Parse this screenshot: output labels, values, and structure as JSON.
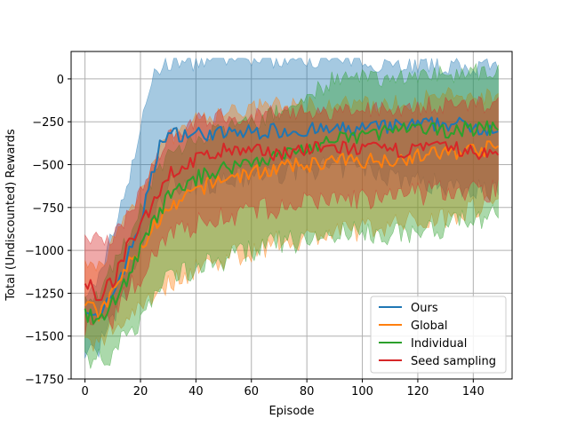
{
  "chart_data": {
    "type": "line",
    "title": "",
    "xlabel": "Episode",
    "ylabel": "Total (Undiscounted) Rewards",
    "xlim": [
      -5,
      154
    ],
    "ylim": [
      -1750,
      160
    ],
    "xticks": [
      0,
      20,
      40,
      60,
      80,
      100,
      120,
      140
    ],
    "yticks": [
      0,
      -250,
      -500,
      -750,
      -1000,
      -1250,
      -1500,
      -1750
    ],
    "xtick_labels": [
      "0",
      "20",
      "40",
      "60",
      "80",
      "100",
      "120",
      "140"
    ],
    "ytick_labels": [
      "0",
      "−250",
      "−500",
      "−750",
      "−1000",
      "−1250",
      "−1500",
      "−1750"
    ],
    "grid": true,
    "legend_position": "lower-right",
    "series": [
      {
        "name": "Ours",
        "color": "#1f77b4",
        "anchors": [
          [
            0,
            -1320
          ],
          [
            5,
            -1420
          ],
          [
            10,
            -1250
          ],
          [
            15,
            -1060
          ],
          [
            20,
            -830
          ],
          [
            25,
            -520
          ],
          [
            28,
            -330
          ],
          [
            35,
            -320
          ],
          [
            50,
            -320
          ],
          [
            70,
            -300
          ],
          [
            90,
            -300
          ],
          [
            110,
            -280
          ],
          [
            130,
            -260
          ],
          [
            149,
            -290
          ]
        ],
        "band_anchors": [
          [
            0,
            -1320,
            -1600
          ],
          [
            5,
            -1150,
            -1560
          ],
          [
            10,
            -900,
            -1420
          ],
          [
            15,
            -620,
            -1250
          ],
          [
            20,
            -300,
            -1000
          ],
          [
            25,
            50,
            -800
          ],
          [
            30,
            90,
            -620
          ],
          [
            50,
            110,
            -600
          ],
          [
            80,
            120,
            -520
          ],
          [
            100,
            100,
            -520
          ],
          [
            120,
            80,
            -600
          ],
          [
            149,
            60,
            -650
          ]
        ]
      },
      {
        "name": "Global",
        "color": "#ff7f0e",
        "anchors": [
          [
            0,
            -1300
          ],
          [
            5,
            -1380
          ],
          [
            10,
            -1250
          ],
          [
            15,
            -1100
          ],
          [
            20,
            -1000
          ],
          [
            25,
            -850
          ],
          [
            30,
            -780
          ],
          [
            40,
            -650
          ],
          [
            50,
            -580
          ],
          [
            70,
            -520
          ],
          [
            90,
            -480
          ],
          [
            110,
            -470
          ],
          [
            130,
            -430
          ],
          [
            149,
            -400
          ]
        ],
        "band_anchors": [
          [
            0,
            -1100,
            -1560
          ],
          [
            5,
            -1100,
            -1560
          ],
          [
            10,
            -950,
            -1450
          ],
          [
            15,
            -800,
            -1400
          ],
          [
            20,
            -650,
            -1300
          ],
          [
            25,
            -450,
            -1250
          ],
          [
            30,
            -350,
            -1200
          ],
          [
            40,
            -250,
            -1100
          ],
          [
            50,
            -200,
            -1050
          ],
          [
            70,
            -150,
            -950
          ],
          [
            90,
            -150,
            -900
          ],
          [
            110,
            -150,
            -850
          ],
          [
            130,
            -100,
            -800
          ],
          [
            149,
            -100,
            -700
          ]
        ]
      },
      {
        "name": "Individual",
        "color": "#2ca02c",
        "anchors": [
          [
            0,
            -1360
          ],
          [
            5,
            -1430
          ],
          [
            10,
            -1300
          ],
          [
            15,
            -1170
          ],
          [
            20,
            -1000
          ],
          [
            25,
            -830
          ],
          [
            30,
            -690
          ],
          [
            40,
            -580
          ],
          [
            50,
            -520
          ],
          [
            60,
            -480
          ],
          [
            70,
            -450
          ],
          [
            90,
            -360
          ],
          [
            110,
            -300
          ],
          [
            130,
            -300
          ],
          [
            149,
            -280
          ]
        ],
        "band_anchors": [
          [
            0,
            -1250,
            -1640
          ],
          [
            5,
            -1250,
            -1620
          ],
          [
            10,
            -1100,
            -1600
          ],
          [
            15,
            -950,
            -1500
          ],
          [
            20,
            -750,
            -1400
          ],
          [
            25,
            -550,
            -1250
          ],
          [
            30,
            -450,
            -1150
          ],
          [
            40,
            -350,
            -1100
          ],
          [
            50,
            -300,
            -1050
          ],
          [
            60,
            -250,
            -1000
          ],
          [
            70,
            -200,
            -950
          ],
          [
            80,
            -100,
            -950
          ],
          [
            90,
            0,
            -900
          ],
          [
            100,
            0,
            -900
          ],
          [
            120,
            20,
            -900
          ],
          [
            149,
            50,
            -780
          ]
        ]
      },
      {
        "name": "Seed sampling",
        "color": "#d62728",
        "anchors": [
          [
            0,
            -1180
          ],
          [
            5,
            -1270
          ],
          [
            10,
            -1180
          ],
          [
            15,
            -1000
          ],
          [
            20,
            -860
          ],
          [
            25,
            -700
          ],
          [
            30,
            -560
          ],
          [
            40,
            -470
          ],
          [
            50,
            -420
          ],
          [
            70,
            -430
          ],
          [
            90,
            -400
          ],
          [
            110,
            -420
          ],
          [
            130,
            -400
          ],
          [
            149,
            -450
          ]
        ],
        "band_anchors": [
          [
            0,
            -900,
            -1450
          ],
          [
            5,
            -950,
            -1450
          ],
          [
            10,
            -950,
            -1400
          ],
          [
            15,
            -800,
            -1250
          ],
          [
            20,
            -650,
            -1150
          ],
          [
            25,
            -480,
            -1000
          ],
          [
            30,
            -330,
            -900
          ],
          [
            40,
            -250,
            -850
          ],
          [
            50,
            -220,
            -800
          ],
          [
            70,
            -200,
            -750
          ],
          [
            90,
            -200,
            -700
          ],
          [
            110,
            -170,
            -700
          ],
          [
            130,
            -150,
            -650
          ],
          [
            149,
            -150,
            -650
          ]
        ]
      }
    ]
  }
}
